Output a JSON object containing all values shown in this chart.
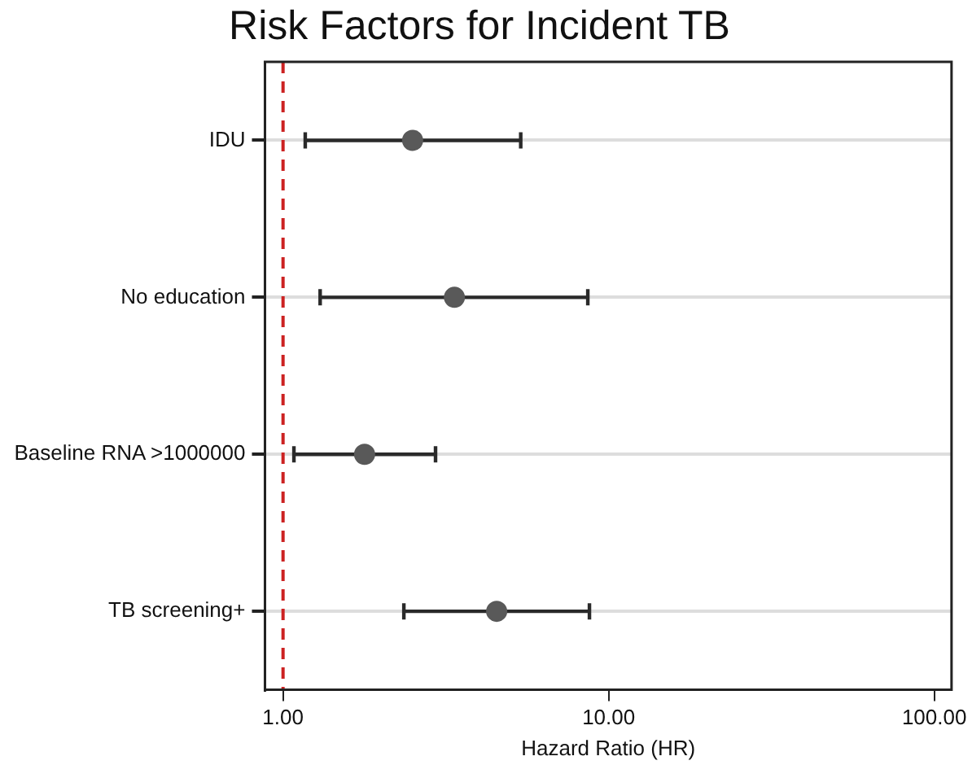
{
  "chart_data": {
    "type": "scatter",
    "orientation": "horizontal",
    "title": "Risk Factors for Incident TB",
    "xlabel": "Hazard Ratio (HR)",
    "categories": [
      "IDU",
      "No education",
      "Baseline RNA >1000000",
      "TB screening+"
    ],
    "values": [
      2.5,
      3.36,
      1.78,
      4.53
    ],
    "color": "#595959",
    "errors": [
      [
        1.17,
        5.37
      ],
      [
        1.3,
        8.63
      ],
      [
        1.08,
        2.94
      ],
      [
        2.35,
        8.73
      ]
    ],
    "log": "x",
    "xlim": [
      0.88,
      113
    ],
    "xticks": [
      {
        "value": 1,
        "label": "1.00"
      },
      {
        "value": 10,
        "label": "10.00"
      },
      {
        "value": 100,
        "label": "100.00"
      }
    ],
    "ref_lines": [
      {
        "axis": "x",
        "value": 1,
        "color": "#cc2222",
        "line_style": "dashed"
      }
    ],
    "grid": "y",
    "marker": "circle",
    "legend": false
  }
}
